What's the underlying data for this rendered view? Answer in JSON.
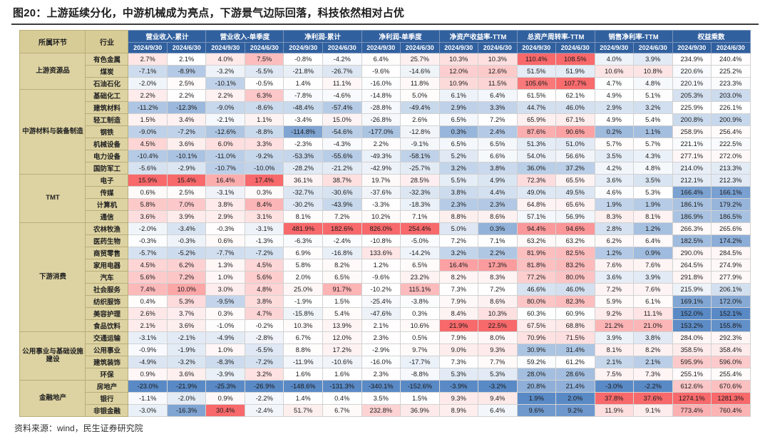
{
  "page": {
    "title": "图20：上游延续分化，中游机械成为亮点，下游景气边际回落，科技依然相对占优",
    "source": "资料来源：wind，民生证券研究院"
  },
  "chart_data": {
    "type": "table",
    "title": "图20：上游延续分化，中游机械成为亮点，下游景气边际回落，科技依然相对占优",
    "corner_headers": [
      "所属环节",
      "行业"
    ],
    "column_groups": [
      "营业收入-累计",
      "营业收入-单季度",
      "净利润-累计",
      "净利润-单季度",
      "净资产收益率-TTM",
      "总资产周转率-TTM",
      "销售净利率-TTM",
      "权益乘数"
    ],
    "date_headers": [
      "2024/9/30",
      "2024/6/30"
    ],
    "heatmap": {
      "low": "#5A8AC6",
      "mid": "#FFFFFF",
      "high": "#F8696B"
    },
    "header_bg": "#31609E",
    "left_col_bg": "#DDD3A2",
    "sectors": [
      {
        "name": "上游资源品",
        "rows": [
          {
            "industry": "有色金属",
            "values": [
              "2.7%",
              "2.1%",
              "4.0%",
              "7.5%",
              "-0.8%",
              "-4.2%",
              "6.4%",
              "25.7%",
              "10.3%",
              "10.3%",
              "110.4%",
              "108.5%",
              "4.0%",
              "3.9%",
              "234.9%",
              "240.4%"
            ]
          },
          {
            "industry": "煤炭",
            "values": [
              "-7.1%",
              "-8.9%",
              "-3.2%",
              "-5.5%",
              "-21.8%",
              "-26.7%",
              "-9.6%",
              "-14.6%",
              "12.0%",
              "12.6%",
              "51.5%",
              "51.9%",
              "10.6%",
              "10.8%",
              "220.6%",
              "225.2%"
            ]
          },
          {
            "industry": "石油石化",
            "values": [
              "-2.0%",
              "2.5%",
              "-10.1%",
              "-0.5%",
              "1.4%",
              "11.1%",
              "-16.0%",
              "11.8%",
              "10.9%",
              "11.5%",
              "105.6%",
              "107.7%",
              "4.7%",
              "4.8%",
              "220.1%",
              "223.3%"
            ]
          }
        ]
      },
      {
        "name": "中游材料与装备制造",
        "rows": [
          {
            "industry": "基础化工",
            "values": [
              "2.2%",
              "2.2%",
              "2.2%",
              "6.3%",
              "-7.8%",
              "-4.6%",
              "-14.8%",
              "5.0%",
              "6.1%",
              "6.4%",
              "61.5%",
              "62.1%",
              "4.9%",
              "5.1%",
              "205.3%",
              "203.0%"
            ]
          },
          {
            "industry": "建筑材料",
            "values": [
              "-11.2%",
              "-12.3%",
              "-9.0%",
              "-8.6%",
              "-48.4%",
              "-57.4%",
              "-28.8%",
              "-49.4%",
              "2.9%",
              "3.3%",
              "44.7%",
              "46.0%",
              "2.9%",
              "3.2%",
              "225.9%",
              "226.1%"
            ]
          },
          {
            "industry": "轻工制造",
            "values": [
              "1.5%",
              "3.4%",
              "-2.1%",
              "1.1%",
              "-3.4%",
              "15.0%",
              "-26.8%",
              "2.6%",
              "6.5%",
              "7.2%",
              "65.9%",
              "67.1%",
              "4.9%",
              "5.4%",
              "200.8%",
              "200.9%"
            ]
          },
          {
            "industry": "钢铁",
            "values": [
              "-9.0%",
              "-7.2%",
              "-12.6%",
              "-8.8%",
              "-114.8%",
              "-54.6%",
              "-177.0%",
              "-12.8%",
              "0.3%",
              "2.4%",
              "87.6%",
              "90.6%",
              "0.2%",
              "1.1%",
              "258.9%",
              "256.4%"
            ]
          },
          {
            "industry": "机械设备",
            "values": [
              "4.5%",
              "3.6%",
              "6.0%",
              "3.3%",
              "-2.3%",
              "-4.3%",
              "2.2%",
              "-9.1%",
              "6.5%",
              "6.5%",
              "51.3%",
              "51.0%",
              "5.7%",
              "5.7%",
              "221.1%",
              "222.5%"
            ]
          },
          {
            "industry": "电力设备",
            "values": [
              "-10.4%",
              "-10.1%",
              "-11.0%",
              "-9.2%",
              "-53.3%",
              "-55.6%",
              "-49.3%",
              "-58.1%",
              "5.2%",
              "6.6%",
              "54.0%",
              "56.6%",
              "3.5%",
              "4.3%",
              "277.1%",
              "272.0%"
            ]
          },
          {
            "industry": "国防军工",
            "values": [
              "-5.6%",
              "-2.9%",
              "-10.7%",
              "-10.0%",
              "-28.2%",
              "-21.2%",
              "-42.9%",
              "-25.7%",
              "3.2%",
              "3.8%",
              "36.0%",
              "37.2%",
              "4.2%",
              "4.8%",
              "214.0%",
              "213.3%"
            ]
          }
        ]
      },
      {
        "name": "TMT",
        "rows": [
          {
            "industry": "电子",
            "values": [
              "15.9%",
              "15.4%",
              "16.4%",
              "17.4%",
              "36.1%",
              "38.7%",
              "19.7%",
              "28.5%",
              "5.5%",
              "4.9%",
              "72.3%",
              "65.5%",
              "3.6%",
              "3.5%",
              "212.1%",
              "212.3%"
            ]
          },
          {
            "industry": "传媒",
            "values": [
              "0.6%",
              "2.5%",
              "-3.1%",
              "0.3%",
              "-32.7%",
              "-30.6%",
              "-37.6%",
              "-32.3%",
              "3.8%",
              "4.4%",
              "49.0%",
              "49.5%",
              "4.6%",
              "5.3%",
              "166.4%",
              "166.1%"
            ]
          },
          {
            "industry": "计算机",
            "values": [
              "5.8%",
              "7.0%",
              "3.8%",
              "8.4%",
              "-30.2%",
              "-43.9%",
              "-3.3%",
              "-18.3%",
              "2.3%",
              "2.3%",
              "64.8%",
              "65.6%",
              "1.9%",
              "1.9%",
              "186.1%",
              "179.2%"
            ]
          },
          {
            "industry": "通信",
            "values": [
              "3.6%",
              "3.9%",
              "2.9%",
              "3.1%",
              "8.1%",
              "7.2%",
              "10.2%",
              "7.1%",
              "8.8%",
              "8.6%",
              "57.1%",
              "56.9%",
              "8.3%",
              "8.1%",
              "186.9%",
              "186.5%"
            ]
          }
        ]
      },
      {
        "name": "下游消费",
        "rows": [
          {
            "industry": "农林牧渔",
            "values": [
              "-2.0%",
              "-3.4%",
              "-0.3%",
              "-3.1%",
              "481.9%",
              "182.6%",
              "826.0%",
              "254.4%",
              "5.0%",
              "0.3%",
              "94.4%",
              "94.6%",
              "2.8%",
              "1.2%",
              "266.3%",
              "265.6%"
            ]
          },
          {
            "industry": "医药生物",
            "values": [
              "-0.3%",
              "-0.3%",
              "0.6%",
              "-1.3%",
              "-6.3%",
              "-2.4%",
              "-10.8%",
              "-5.0%",
              "7.2%",
              "7.1%",
              "63.2%",
              "63.2%",
              "6.2%",
              "6.4%",
              "182.5%",
              "174.2%"
            ]
          },
          {
            "industry": "商贸零售",
            "values": [
              "-5.7%",
              "-5.2%",
              "-7.7%",
              "-7.2%",
              "6.9%",
              "-16.8%",
              "133.6%",
              "-14.2%",
              "3.2%",
              "2.2%",
              "81.9%",
              "82.5%",
              "1.2%",
              "0.9%",
              "290.0%",
              "284.5%"
            ]
          },
          {
            "industry": "家用电器",
            "values": [
              "4.5%",
              "6.2%",
              "1.3%",
              "4.5%",
              "5.8%",
              "8.2%",
              "1.2%",
              "6.5%",
              "16.4%",
              "17.3%",
              "81.8%",
              "83.2%",
              "7.6%",
              "7.6%",
              "264.5%",
              "274.9%"
            ]
          },
          {
            "industry": "汽车",
            "values": [
              "5.6%",
              "7.2%",
              "1.0%",
              "5.6%",
              "2.0%",
              "6.5%",
              "-9.6%",
              "23.2%",
              "8.2%",
              "8.3%",
              "77.2%",
              "80.0%",
              "3.6%",
              "3.9%",
              "291.8%",
              "277.9%"
            ]
          },
          {
            "industry": "社会服务",
            "values": [
              "7.4%",
              "10.0%",
              "3.0%",
              "4.8%",
              "25.0%",
              "91.7%",
              "-10.2%",
              "115.1%",
              "7.3%",
              "7.2%",
              "46.6%",
              "46.0%",
              "7.2%",
              "7.6%",
              "215.9%",
              "206.1%"
            ]
          },
          {
            "industry": "纺织服饰",
            "values": [
              "0.4%",
              "5.3%",
              "-9.5%",
              "3.8%",
              "-1.9%",
              "1.5%",
              "-25.4%",
              "-3.8%",
              "7.9%",
              "8.6%",
              "80.0%",
              "82.3%",
              "5.9%",
              "6.1%",
              "169.1%",
              "172.0%"
            ]
          },
          {
            "industry": "美容护理",
            "values": [
              "2.6%",
              "3.7%",
              "0.3%",
              "4.7%",
              "-15.8%",
              "5.4%",
              "-47.6%",
              "0.3%",
              "8.4%",
              "10.3%",
              "60.3%",
              "60.9%",
              "9.2%",
              "11.1%",
              "152.0%",
              "152.1%"
            ]
          },
          {
            "industry": "食品饮料",
            "values": [
              "2.1%",
              "3.6%",
              "-1.0%",
              "-0.2%",
              "10.3%",
              "13.9%",
              "2.1%",
              "10.6%",
              "21.9%",
              "22.5%",
              "67.5%",
              "68.8%",
              "21.2%",
              "21.0%",
              "153.2%",
              "155.8%"
            ]
          }
        ]
      },
      {
        "name": "公用事业与基础设施建设",
        "rows": [
          {
            "industry": "交通运输",
            "values": [
              "-3.1%",
              "-2.1%",
              "-4.9%",
              "-2.8%",
              "6.7%",
              "12.0%",
              "2.3%",
              "0.5%",
              "7.9%",
              "8.0%",
              "70.9%",
              "71.5%",
              "3.9%",
              "3.8%",
              "284.0%",
              "292.3%"
            ]
          },
          {
            "industry": "公用事业",
            "values": [
              "-0.9%",
              "-1.9%",
              "1.0%",
              "-5.5%",
              "8.8%",
              "17.2%",
              "-2.9%",
              "9.7%",
              "9.0%",
              "9.3%",
              "30.9%",
              "31.4%",
              "8.1%",
              "8.2%",
              "358.5%",
              "358.4%"
            ]
          },
          {
            "industry": "建筑装饰",
            "values": [
              "-4.9%",
              "-3.2%",
              "-8.3%",
              "-7.2%",
              "-11.9%",
              "-10.6%",
              "-16.0%",
              "-17.7%",
              "7.3%",
              "7.7%",
              "59.2%",
              "61.2%",
              "2.1%",
              "2.1%",
              "595.9%",
              "596.0%"
            ]
          },
          {
            "industry": "环保",
            "values": [
              "0.9%",
              "3.6%",
              "-3.9%",
              "3.2%",
              "1.6%",
              "1.6%",
              "2.3%",
              "-8.8%",
              "5.3%",
              "5.3%",
              "28.0%",
              "28.6%",
              "7.5%",
              "7.3%",
              "255.1%",
              "255.4%"
            ]
          }
        ]
      },
      {
        "name": "金融地产",
        "rows": [
          {
            "industry": "房地产",
            "values": [
              "-23.0%",
              "-21.9%",
              "-25.3%",
              "-26.9%",
              "-148.6%",
              "-131.3%",
              "-340.1%",
              "-152.6%",
              "-3.9%",
              "-3.2%",
              "20.8%",
              "21.4%",
              "-3.0%",
              "-2.2%",
              "612.6%",
              "670.6%"
            ]
          },
          {
            "industry": "银行",
            "values": [
              "-1.1%",
              "-2.0%",
              "0.9%",
              "-2.2%",
              "1.4%",
              "0.4%",
              "3.5%",
              "1.5%",
              "9.3%",
              "9.4%",
              "1.9%",
              "2.0%",
              "37.8%",
              "37.6%",
              "1274.1%",
              "1281.3%"
            ]
          },
          {
            "industry": "非银金融",
            "values": [
              "-3.0%",
              "-16.3%",
              "30.4%",
              "-2.4%",
              "51.7%",
              "6.7%",
              "232.8%",
              "36.9%",
              "8.9%",
              "6.4%",
              "9.6%",
              "9.2%",
              "11.9%",
              "9.1%",
              "773.4%",
              "760.4%"
            ]
          }
        ]
      }
    ]
  }
}
